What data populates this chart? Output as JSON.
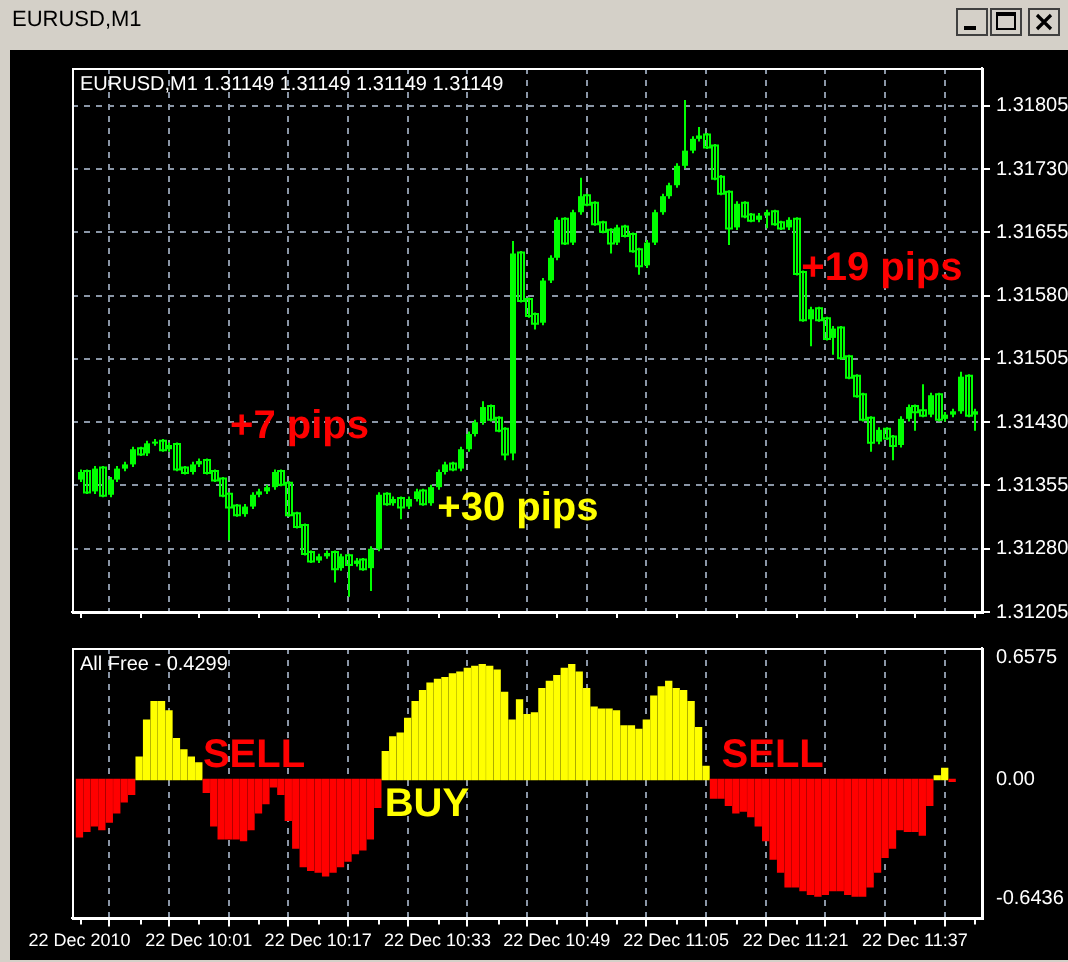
{
  "chart_data": [
    {
      "type": "candlestick",
      "title": "EURUSD,M1 1.31149 1.31149 1.31149 1.31149",
      "subtitle": "EURUSD,M1",
      "color": "#00ff00",
      "x": [
        "2010-12-22T09:45",
        "2010-12-22T09:46",
        "2010-12-22T09:47",
        "2010-12-22T09:48",
        "2010-12-22T09:49",
        "2010-12-22T09:50",
        "2010-12-22T09:51",
        "2010-12-22T09:52",
        "2010-12-22T09:53",
        "2010-12-22T09:54",
        "2010-12-22T09:55",
        "2010-12-22T09:56",
        "2010-12-22T09:57",
        "2010-12-22T09:58",
        "2010-12-22T09:59",
        "2010-12-22T10:00",
        "2010-12-22T10:01",
        "2010-12-22T10:02",
        "2010-12-22T10:03",
        "2010-12-22T10:04",
        "2010-12-22T10:05",
        "2010-12-22T10:06",
        "2010-12-22T10:07",
        "2010-12-22T10:08",
        "2010-12-22T10:09",
        "2010-12-22T10:10",
        "2010-12-22T10:11",
        "2010-12-22T10:12",
        "2010-12-22T10:13",
        "2010-12-22T10:14",
        "2010-12-22T10:15",
        "2010-12-22T10:16",
        "2010-12-22T10:17",
        "2010-12-22T10:18",
        "2010-12-22T10:19",
        "2010-12-22T10:20",
        "2010-12-22T10:21",
        "2010-12-22T10:22",
        "2010-12-22T10:23",
        "2010-12-22T10:24",
        "2010-12-22T10:25",
        "2010-12-22T10:26",
        "2010-12-22T10:27",
        "2010-12-22T10:28",
        "2010-12-22T10:29",
        "2010-12-22T10:30",
        "2010-12-22T10:31",
        "2010-12-22T10:32",
        "2010-12-22T10:33",
        "2010-12-22T10:34",
        "2010-12-22T10:35",
        "2010-12-22T10:36",
        "2010-12-22T10:37",
        "2010-12-22T10:38",
        "2010-12-22T10:39",
        "2010-12-22T10:40",
        "2010-12-22T10:41",
        "2010-12-22T10:42",
        "2010-12-22T10:43",
        "2010-12-22T10:44",
        "2010-12-22T10:45",
        "2010-12-22T10:46",
        "2010-12-22T10:47",
        "2010-12-22T10:48",
        "2010-12-22T10:49",
        "2010-12-22T10:50",
        "2010-12-22T10:51",
        "2010-12-22T10:52",
        "2010-12-22T10:53",
        "2010-12-22T10:54",
        "2010-12-22T10:55",
        "2010-12-22T10:56",
        "2010-12-22T10:57",
        "2010-12-22T10:58",
        "2010-12-22T10:59",
        "2010-12-22T11:00",
        "2010-12-22T11:01",
        "2010-12-22T11:02",
        "2010-12-22T11:03",
        "2010-12-22T11:04",
        "2010-12-22T11:05",
        "2010-12-22T11:06",
        "2010-12-22T11:07",
        "2010-12-22T11:08",
        "2010-12-22T11:09",
        "2010-12-22T11:10",
        "2010-12-22T11:11",
        "2010-12-22T11:12",
        "2010-12-22T11:13",
        "2010-12-22T11:14",
        "2010-12-22T11:15",
        "2010-12-22T11:16",
        "2010-12-22T11:17",
        "2010-12-22T11:18",
        "2010-12-22T11:19",
        "2010-12-22T11:20",
        "2010-12-22T11:21",
        "2010-12-22T11:22",
        "2010-12-22T11:23",
        "2010-12-22T11:24",
        "2010-12-22T11:25",
        "2010-12-22T11:26",
        "2010-12-22T11:27",
        "2010-12-22T11:28",
        "2010-12-22T11:29",
        "2010-12-22T11:30",
        "2010-12-22T11:31",
        "2010-12-22T11:32",
        "2010-12-22T11:33",
        "2010-12-22T11:34",
        "2010-12-22T11:35",
        "2010-12-22T11:36",
        "2010-12-22T11:37",
        "2010-12-22T11:38",
        "2010-12-22T11:39",
        "2010-12-22T11:40",
        "2010-12-22T11:41",
        "2010-12-22T11:42",
        "2010-12-22T11:43",
        "2010-12-22T11:44",
        "2010-12-22T11:45"
      ],
      "ohlc": [
        [
          1.31362,
          1.31374,
          1.31359,
          1.31371
        ],
        [
          1.31371,
          1.31374,
          1.31345,
          1.31348
        ],
        [
          1.31348,
          1.31378,
          1.31345,
          1.31375
        ],
        [
          1.31375,
          1.31378,
          1.31341,
          1.31344
        ],
        [
          1.31344,
          1.31365,
          1.31341,
          1.31362
        ],
        [
          1.31362,
          1.31378,
          1.31359,
          1.31375
        ],
        [
          1.31375,
          1.31383,
          1.31372,
          1.3138
        ],
        [
          1.3138,
          1.31401,
          1.31377,
          1.31398
        ],
        [
          1.31398,
          1.31401,
          1.3139,
          1.31393
        ],
        [
          1.31393,
          1.31408,
          1.3139,
          1.31405
        ],
        [
          1.31405,
          1.3141,
          1.31402,
          1.31407
        ],
        [
          1.31407,
          1.3141,
          1.31395,
          1.31398
        ],
        [
          1.31398,
          1.31406,
          1.31395,
          1.31403
        ],
        [
          1.31403,
          1.31406,
          1.31372,
          1.31375
        ],
        [
          1.31375,
          1.31378,
          1.31368,
          1.31371
        ],
        [
          1.31371,
          1.31383,
          1.31368,
          1.3138
        ],
        [
          1.3138,
          1.31387,
          1.31377,
          1.31384
        ],
        [
          1.31384,
          1.31387,
          1.31368,
          1.31371
        ],
        [
          1.31371,
          1.31374,
          1.31359,
          1.31362
        ],
        [
          1.31362,
          1.31365,
          1.31341,
          1.31344
        ],
        [
          1.31344,
          1.31347,
          1.3129,
          1.3133
        ],
        [
          1.3133,
          1.31333,
          1.31318,
          1.31321
        ],
        [
          1.31321,
          1.31333,
          1.31318,
          1.3133
        ],
        [
          1.3133,
          1.31347,
          1.31327,
          1.31344
        ],
        [
          1.31344,
          1.31351,
          1.31341,
          1.31348
        ],
        [
          1.31348,
          1.31356,
          1.31345,
          1.31353
        ],
        [
          1.31353,
          1.31374,
          1.3135,
          1.31371
        ],
        [
          1.31371,
          1.31374,
          1.31354,
          1.31357
        ],
        [
          1.31357,
          1.3136,
          1.31318,
          1.31321
        ],
        [
          1.31321,
          1.31324,
          1.31304,
          1.31307
        ],
        [
          1.31307,
          1.3131,
          1.31272,
          1.31275
        ],
        [
          1.31275,
          1.31278,
          1.31263,
          1.31266
        ],
        [
          1.31266,
          1.31274,
          1.31263,
          1.31271
        ],
        [
          1.31271,
          1.31278,
          1.31268,
          1.31275
        ],
        [
          1.31275,
          1.31278,
          1.3124,
          1.31257
        ],
        [
          1.31257,
          1.31274,
          1.31254,
          1.31271
        ],
        [
          1.31271,
          1.31274,
          1.31223,
          1.31262
        ],
        [
          1.31262,
          1.31269,
          1.31259,
          1.31266
        ],
        [
          1.31266,
          1.31269,
          1.31254,
          1.31257
        ],
        [
          1.31257,
          1.31283,
          1.3123,
          1.3128
        ],
        [
          1.3128,
          1.31347,
          1.31277,
          1.31344
        ],
        [
          1.31344,
          1.31347,
          1.31331,
          1.31334
        ],
        [
          1.31334,
          1.31342,
          1.31331,
          1.31339
        ],
        [
          1.31339,
          1.31342,
          1.31315,
          1.3133
        ],
        [
          1.3133,
          1.31342,
          1.31327,
          1.31339
        ],
        [
          1.31339,
          1.31351,
          1.31336,
          1.31348
        ],
        [
          1.31348,
          1.31351,
          1.31331,
          1.31334
        ],
        [
          1.31334,
          1.31356,
          1.31331,
          1.31353
        ],
        [
          1.31353,
          1.31374,
          1.3135,
          1.31371
        ],
        [
          1.31371,
          1.31383,
          1.31368,
          1.3138
        ],
        [
          1.3138,
          1.31383,
          1.31372,
          1.31375
        ],
        [
          1.31375,
          1.31401,
          1.31372,
          1.31398
        ],
        [
          1.31398,
          1.31419,
          1.31395,
          1.31416
        ],
        [
          1.31416,
          1.31433,
          1.31413,
          1.3143
        ],
        [
          1.3143,
          1.31455,
          1.31427,
          1.31448
        ],
        [
          1.31448,
          1.31451,
          1.31431,
          1.31434
        ],
        [
          1.31434,
          1.31437,
          1.31418,
          1.31421
        ],
        [
          1.31421,
          1.31424,
          1.31385,
          1.31393
        ],
        [
          1.31393,
          1.31645,
          1.31385,
          1.3163
        ],
        [
          1.3163,
          1.31633,
          1.31572,
          1.31575
        ],
        [
          1.31575,
          1.31578,
          1.31554,
          1.31557
        ],
        [
          1.31557,
          1.3156,
          1.3154,
          1.31548
        ],
        [
          1.31548,
          1.31601,
          1.31545,
          1.31598
        ],
        [
          1.31598,
          1.31628,
          1.31595,
          1.31625
        ],
        [
          1.31625,
          1.31673,
          1.31622,
          1.3167
        ],
        [
          1.3167,
          1.31673,
          1.3164,
          1.31643
        ],
        [
          1.31643,
          1.31682,
          1.3164,
          1.31679
        ],
        [
          1.31679,
          1.3172,
          1.31676,
          1.31698
        ],
        [
          1.31698,
          1.31701,
          1.31686,
          1.31689
        ],
        [
          1.31689,
          1.31692,
          1.31663,
          1.31666
        ],
        [
          1.31666,
          1.31669,
          1.31654,
          1.31657
        ],
        [
          1.31657,
          1.3166,
          1.3163,
          1.31643
        ],
        [
          1.31643,
          1.31664,
          1.3164,
          1.31661
        ],
        [
          1.31661,
          1.31664,
          1.31649,
          1.31652
        ],
        [
          1.31652,
          1.31655,
          1.31631,
          1.31634
        ],
        [
          1.31634,
          1.31637,
          1.31605,
          1.31616
        ],
        [
          1.31616,
          1.31646,
          1.31613,
          1.31643
        ],
        [
          1.31643,
          1.31682,
          1.3164,
          1.31679
        ],
        [
          1.31679,
          1.31701,
          1.31676,
          1.31698
        ],
        [
          1.31698,
          1.31714,
          1.31695,
          1.31711
        ],
        [
          1.31711,
          1.31737,
          1.31708,
          1.31734
        ],
        [
          1.31734,
          1.31812,
          1.31731,
          1.31752
        ],
        [
          1.31752,
          1.31769,
          1.31749,
          1.31766
        ],
        [
          1.31766,
          1.3178,
          1.31763,
          1.3177
        ],
        [
          1.3177,
          1.31773,
          1.31754,
          1.31757
        ],
        [
          1.31757,
          1.3176,
          1.31717,
          1.3172
        ],
        [
          1.3172,
          1.31723,
          1.31699,
          1.31702
        ],
        [
          1.31702,
          1.31705,
          1.3164,
          1.31661
        ],
        [
          1.31661,
          1.31692,
          1.31658,
          1.31689
        ],
        [
          1.31689,
          1.31692,
          1.31672,
          1.31675
        ],
        [
          1.31675,
          1.31678,
          1.31667,
          1.3167
        ],
        [
          1.3167,
          1.31678,
          1.31667,
          1.31675
        ],
        [
          1.31675,
          1.31682,
          1.3166,
          1.31679
        ],
        [
          1.31679,
          1.31682,
          1.31663,
          1.31666
        ],
        [
          1.31666,
          1.31669,
          1.31658,
          1.31661
        ],
        [
          1.31661,
          1.31673,
          1.31658,
          1.3167
        ],
        [
          1.3167,
          1.31673,
          1.31604,
          1.31607
        ],
        [
          1.31607,
          1.3161,
          1.31549,
          1.31552
        ],
        [
          1.31552,
          1.31567,
          1.3152,
          1.31564
        ],
        [
          1.31564,
          1.31567,
          1.31549,
          1.31552
        ],
        [
          1.31552,
          1.31555,
          1.31527,
          1.3153
        ],
        [
          1.3153,
          1.31544,
          1.3151,
          1.31541
        ],
        [
          1.31541,
          1.31544,
          1.31504,
          1.31507
        ],
        [
          1.31507,
          1.3151,
          1.31481,
          1.31484
        ],
        [
          1.31484,
          1.31487,
          1.31459,
          1.31462
        ],
        [
          1.31462,
          1.31465,
          1.31431,
          1.31434
        ],
        [
          1.31434,
          1.31437,
          1.31395,
          1.31407
        ],
        [
          1.31407,
          1.31424,
          1.31404,
          1.31421
        ],
        [
          1.31421,
          1.31424,
          1.31409,
          1.31412
        ],
        [
          1.31412,
          1.31415,
          1.31385,
          1.31403
        ],
        [
          1.31403,
          1.31437,
          1.314,
          1.31434
        ],
        [
          1.31434,
          1.31451,
          1.31431,
          1.31448
        ],
        [
          1.31448,
          1.31451,
          1.3142,
          1.31443
        ],
        [
          1.31443,
          1.31475,
          1.31436,
          1.31439
        ],
        [
          1.31439,
          1.31465,
          1.31436,
          1.31462
        ],
        [
          1.31462,
          1.31465,
          1.31431,
          1.31434
        ],
        [
          1.31434,
          1.31442,
          1.31431,
          1.31439
        ],
        [
          1.31439,
          1.31446,
          1.31436,
          1.31443
        ],
        [
          1.31443,
          1.3149,
          1.3144,
          1.31484
        ],
        [
          1.31484,
          1.31487,
          1.31436,
          1.31439
        ],
        [
          1.31439,
          1.31446,
          1.3142,
          1.31443
        ]
      ],
      "xlim": [
        "2010-12-22T09:44",
        "2010-12-22T11:46"
      ],
      "xticks": [
        {
          "value": "2010-12-22T09:45",
          "label": null
        },
        {
          "value": "2010-12-22T09:53",
          "label": null
        },
        {
          "value": "2010-12-22T10:01",
          "label": null
        },
        {
          "value": "2010-12-22T10:09",
          "label": null
        },
        {
          "value": "2010-12-22T10:17",
          "label": null
        },
        {
          "value": "2010-12-22T10:25",
          "label": null
        },
        {
          "value": "2010-12-22T10:33",
          "label": null
        },
        {
          "value": "2010-12-22T10:41",
          "label": null
        },
        {
          "value": "2010-12-22T10:49",
          "label": null
        },
        {
          "value": "2010-12-22T10:57",
          "label": null
        },
        {
          "value": "2010-12-22T11:05",
          "label": null
        },
        {
          "value": "2010-12-22T11:13",
          "label": null
        },
        {
          "value": "2010-12-22T11:21",
          "label": null
        },
        {
          "value": "2010-12-22T11:29",
          "label": null
        },
        {
          "value": "2010-12-22T11:37",
          "label": null
        },
        {
          "value": "2010-12-22T11:45",
          "label": null
        }
      ],
      "ylim": [
        1.31205,
        1.3185
      ],
      "yticks": [
        {
          "value": 1.31205,
          "label": "1.31205"
        },
        {
          "value": 1.3128,
          "label": "1.31280"
        },
        {
          "value": 1.31355,
          "label": "1.31355"
        },
        {
          "value": 1.3143,
          "label": "1.31430"
        },
        {
          "value": 1.31505,
          "label": "1.31505"
        },
        {
          "value": 1.3158,
          "label": "1.31580"
        },
        {
          "value": 1.31655,
          "label": "1.31655"
        },
        {
          "value": 1.3173,
          "label": "1.31730"
        },
        {
          "value": 1.31805,
          "label": "1.31805"
        }
      ],
      "grid": true,
      "tick_labels": "y",
      "annotations": [
        "+7 pips",
        "+30 pips",
        "+19 pips"
      ]
    },
    {
      "type": "bar",
      "title": "All Free - 0.4299",
      "x": [
        "2010-12-22T09:45",
        "2010-12-22T09:46",
        "2010-12-22T09:47",
        "2010-12-22T09:48",
        "2010-12-22T09:49",
        "2010-12-22T09:50",
        "2010-12-22T09:51",
        "2010-12-22T09:52",
        "2010-12-22T09:53",
        "2010-12-22T09:54",
        "2010-12-22T09:55",
        "2010-12-22T09:56",
        "2010-12-22T09:57",
        "2010-12-22T09:58",
        "2010-12-22T09:59",
        "2010-12-22T10:00",
        "2010-12-22T10:01",
        "2010-12-22T10:02",
        "2010-12-22T10:03",
        "2010-12-22T10:04",
        "2010-12-22T10:05",
        "2010-12-22T10:06",
        "2010-12-22T10:07",
        "2010-12-22T10:08",
        "2010-12-22T10:09",
        "2010-12-22T10:10",
        "2010-12-22T10:11",
        "2010-12-22T10:12",
        "2010-12-22T10:13",
        "2010-12-22T10:14",
        "2010-12-22T10:15",
        "2010-12-22T10:16",
        "2010-12-22T10:17",
        "2010-12-22T10:18",
        "2010-12-22T10:19",
        "2010-12-22T10:20",
        "2010-12-22T10:21",
        "2010-12-22T10:22",
        "2010-12-22T10:23",
        "2010-12-22T10:24",
        "2010-12-22T10:25",
        "2010-12-22T10:26",
        "2010-12-22T10:27",
        "2010-12-22T10:28",
        "2010-12-22T10:29",
        "2010-12-22T10:30",
        "2010-12-22T10:31",
        "2010-12-22T10:32",
        "2010-12-22T10:33",
        "2010-12-22T10:34",
        "2010-12-22T10:35",
        "2010-12-22T10:36",
        "2010-12-22T10:37",
        "2010-12-22T10:38",
        "2010-12-22T10:39",
        "2010-12-22T10:40",
        "2010-12-22T10:41",
        "2010-12-22T10:42",
        "2010-12-22T10:43",
        "2010-12-22T10:44",
        "2010-12-22T10:45",
        "2010-12-22T10:46",
        "2010-12-22T10:47",
        "2010-12-22T10:48",
        "2010-12-22T10:49",
        "2010-12-22T10:50",
        "2010-12-22T10:51",
        "2010-12-22T10:52",
        "2010-12-22T10:53",
        "2010-12-22T10:54",
        "2010-12-22T10:55",
        "2010-12-22T10:56",
        "2010-12-22T10:57",
        "2010-12-22T10:58",
        "2010-12-22T10:59",
        "2010-12-22T11:00",
        "2010-12-22T11:01",
        "2010-12-22T11:02",
        "2010-12-22T11:03",
        "2010-12-22T11:04",
        "2010-12-22T11:05",
        "2010-12-22T11:06",
        "2010-12-22T11:07",
        "2010-12-22T11:08",
        "2010-12-22T11:09",
        "2010-12-22T11:10",
        "2010-12-22T11:11",
        "2010-12-22T11:12",
        "2010-12-22T11:13",
        "2010-12-22T11:14",
        "2010-12-22T11:15",
        "2010-12-22T11:16",
        "2010-12-22T11:17",
        "2010-12-22T11:18",
        "2010-12-22T11:19",
        "2010-12-22T11:20",
        "2010-12-22T11:21",
        "2010-12-22T11:22",
        "2010-12-22T11:23",
        "2010-12-22T11:24",
        "2010-12-22T11:25",
        "2010-12-22T11:26",
        "2010-12-22T11:27",
        "2010-12-22T11:28",
        "2010-12-22T11:29",
        "2010-12-22T11:30",
        "2010-12-22T11:31",
        "2010-12-22T11:32",
        "2010-12-22T11:33",
        "2010-12-22T11:34",
        "2010-12-22T11:35",
        "2010-12-22T11:36",
        "2010-12-22T11:37",
        "2010-12-22T11:38",
        "2010-12-22T11:39",
        "2010-12-22T11:40",
        "2010-12-22T11:41",
        "2010-12-22T11:42"
      ],
      "values": [
        -0.31,
        -0.28,
        -0.25,
        -0.27,
        -0.23,
        -0.18,
        -0.12,
        -0.08,
        0.12,
        0.32,
        0.42,
        0.42,
        0.37,
        0.22,
        0.16,
        0.12,
        0.09,
        -0.07,
        -0.25,
        -0.32,
        -0.32,
        -0.32,
        -0.33,
        -0.27,
        -0.18,
        -0.13,
        -0.04,
        -0.08,
        -0.22,
        -0.37,
        -0.47,
        -0.49,
        -0.5,
        -0.52,
        -0.5,
        -0.47,
        -0.44,
        -0.4,
        -0.38,
        -0.32,
        -0.15,
        0.15,
        0.23,
        0.25,
        0.33,
        0.42,
        0.48,
        0.52,
        0.54,
        0.55,
        0.57,
        0.58,
        0.6,
        0.61,
        0.62,
        0.61,
        0.59,
        0.47,
        0.32,
        0.43,
        0.35,
        0.36,
        0.49,
        0.53,
        0.56,
        0.6,
        0.62,
        0.58,
        0.49,
        0.39,
        0.38,
        0.38,
        0.37,
        0.29,
        0.29,
        0.27,
        0.32,
        0.45,
        0.5,
        0.53,
        0.49,
        0.48,
        0.42,
        0.28,
        0.07,
        -0.1,
        -0.1,
        -0.14,
        -0.18,
        -0.17,
        -0.2,
        -0.25,
        -0.33,
        -0.43,
        -0.5,
        -0.58,
        -0.58,
        -0.6,
        -0.62,
        -0.63,
        -0.62,
        -0.6,
        -0.6,
        -0.62,
        -0.63,
        -0.63,
        -0.58,
        -0.5,
        -0.42,
        -0.37,
        -0.27,
        -0.28,
        -0.28,
        -0.3,
        -0.14,
        0.02,
        0.06,
        -0.01
      ],
      "colors": [
        "#ff0000",
        "#ff0000",
        "#ff0000",
        "#ff0000",
        "#ff0000",
        "#ff0000",
        "#ff0000",
        "#ff0000",
        "#ffff00",
        "#ffff00",
        "#ffff00",
        "#ffff00",
        "#ffff00",
        "#ffff00",
        "#ffff00",
        "#ffff00",
        "#ffff00",
        "#ff0000",
        "#ff0000",
        "#ff0000",
        "#ff0000",
        "#ff0000",
        "#ff0000",
        "#ff0000",
        "#ff0000",
        "#ff0000",
        "#ff0000",
        "#ff0000",
        "#ff0000",
        "#ff0000",
        "#ff0000",
        "#ff0000",
        "#ff0000",
        "#ff0000",
        "#ff0000",
        "#ff0000",
        "#ff0000",
        "#ff0000",
        "#ff0000",
        "#ff0000",
        "#ff0000",
        "#ffff00",
        "#ffff00",
        "#ffff00",
        "#ffff00",
        "#ffff00",
        "#ffff00",
        "#ffff00",
        "#ffff00",
        "#ffff00",
        "#ffff00",
        "#ffff00",
        "#ffff00",
        "#ffff00",
        "#ffff00",
        "#ffff00",
        "#ffff00",
        "#ffff00",
        "#ffff00",
        "#ffff00",
        "#ffff00",
        "#ffff00",
        "#ffff00",
        "#ffff00",
        "#ffff00",
        "#ffff00",
        "#ffff00",
        "#ffff00",
        "#ffff00",
        "#ffff00",
        "#ffff00",
        "#ffff00",
        "#ffff00",
        "#ffff00",
        "#ffff00",
        "#ffff00",
        "#ffff00",
        "#ffff00",
        "#ffff00",
        "#ffff00",
        "#ffff00",
        "#ffff00",
        "#ffff00",
        "#ffff00",
        "#ffff00",
        "#ff0000",
        "#ff0000",
        "#ff0000",
        "#ff0000",
        "#ff0000",
        "#ff0000",
        "#ff0000",
        "#ff0000",
        "#ff0000",
        "#ff0000",
        "#ff0000",
        "#ff0000",
        "#ff0000",
        "#ff0000",
        "#ff0000",
        "#ff0000",
        "#ff0000",
        "#ff0000",
        "#ff0000",
        "#ff0000",
        "#ff0000",
        "#ff0000",
        "#ff0000",
        "#ff0000",
        "#ff0000",
        "#ff0000",
        "#ff0000",
        "#ff0000",
        "#ff0000",
        "#ff0000",
        "#ffff00",
        "#ffff00",
        "#ff0000"
      ],
      "xlim": [
        "2010-12-22T09:44",
        "2010-12-22T11:46"
      ],
      "xticks": [
        {
          "value": "2010-12-22T09:45",
          "label": "22 Dec 2010"
        },
        {
          "value": "2010-12-22T09:53",
          "label": null
        },
        {
          "value": "2010-12-22T10:01",
          "label": "22 Dec 10:01"
        },
        {
          "value": "2010-12-22T10:09",
          "label": null
        },
        {
          "value": "2010-12-22T10:17",
          "label": "22 Dec 10:17"
        },
        {
          "value": "2010-12-22T10:25",
          "label": null
        },
        {
          "value": "2010-12-22T10:33",
          "label": "22 Dec 10:33"
        },
        {
          "value": "2010-12-22T10:41",
          "label": null
        },
        {
          "value": "2010-12-22T10:49",
          "label": "22 Dec 10:49"
        },
        {
          "value": "2010-12-22T10:57",
          "label": null
        },
        {
          "value": "2010-12-22T11:05",
          "label": "22 Dec 11:05"
        },
        {
          "value": "2010-12-22T11:13",
          "label": null
        },
        {
          "value": "2010-12-22T11:21",
          "label": "22 Dec 11:21"
        },
        {
          "value": "2010-12-22T11:29",
          "label": null
        },
        {
          "value": "2010-12-22T11:37",
          "label": "22 Dec 11:37"
        },
        {
          "value": "2010-12-22T11:45",
          "label": null
        }
      ],
      "ylim": [
        -0.75,
        0.71
      ],
      "yticks": [
        {
          "value": 0.6575,
          "label": "0.6575"
        },
        {
          "value": 0,
          "label": "0.00"
        },
        {
          "value": -0.6436,
          "label": "-0.6436"
        }
      ],
      "grid": "x",
      "annotations": [
        "SELL",
        "BUY",
        "SELL"
      ]
    }
  ]
}
